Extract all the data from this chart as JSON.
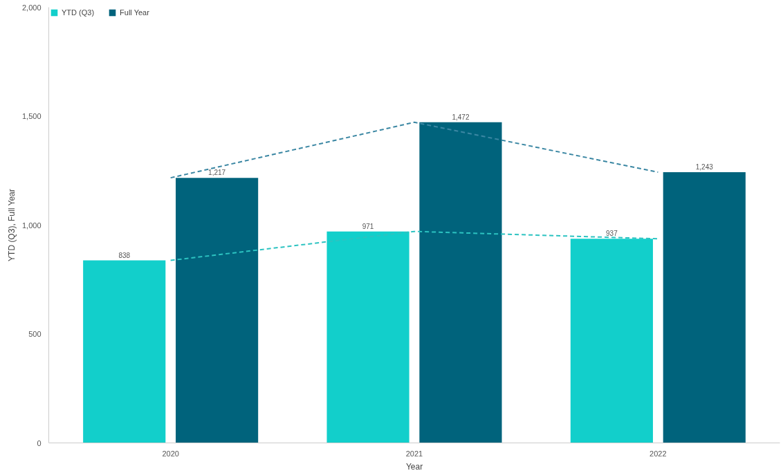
{
  "chart_data": {
    "type": "bar",
    "xlabel": "Year",
    "ylabel": "YTD (Q3), Full Year",
    "categories": [
      "2020",
      "2021",
      "2022"
    ],
    "series": [
      {
        "name": "YTD (Q3)",
        "color": "#12cfcb",
        "values": [
          838,
          971,
          937
        ],
        "value_labels": [
          "838",
          "971",
          "937"
        ]
      },
      {
        "name": "Full Year",
        "color": "#00637c",
        "values": [
          1217,
          1472,
          1243
        ],
        "value_labels": [
          "1,217",
          "1,472",
          "1,243"
        ]
      },
      {
        "type": "line",
        "color": "#2cc3c1",
        "values": [
          838,
          971,
          937
        ],
        "line_style": "dashed"
      },
      {
        "type": "line",
        "color": "#3b87a3",
        "values": [
          1217,
          1472,
          1243
        ],
        "line_style": "dashed"
      }
    ],
    "ylim": [
      0,
      2000
    ],
    "yticks": [
      {
        "value": 0,
        "label": "0"
      },
      {
        "value": 500,
        "label": "500"
      },
      {
        "value": 1000,
        "label": "1,000"
      },
      {
        "value": 1500,
        "label": "1,500"
      },
      {
        "value": 2000,
        "label": "2,000"
      }
    ],
    "grid": false,
    "legend": "top left"
  }
}
